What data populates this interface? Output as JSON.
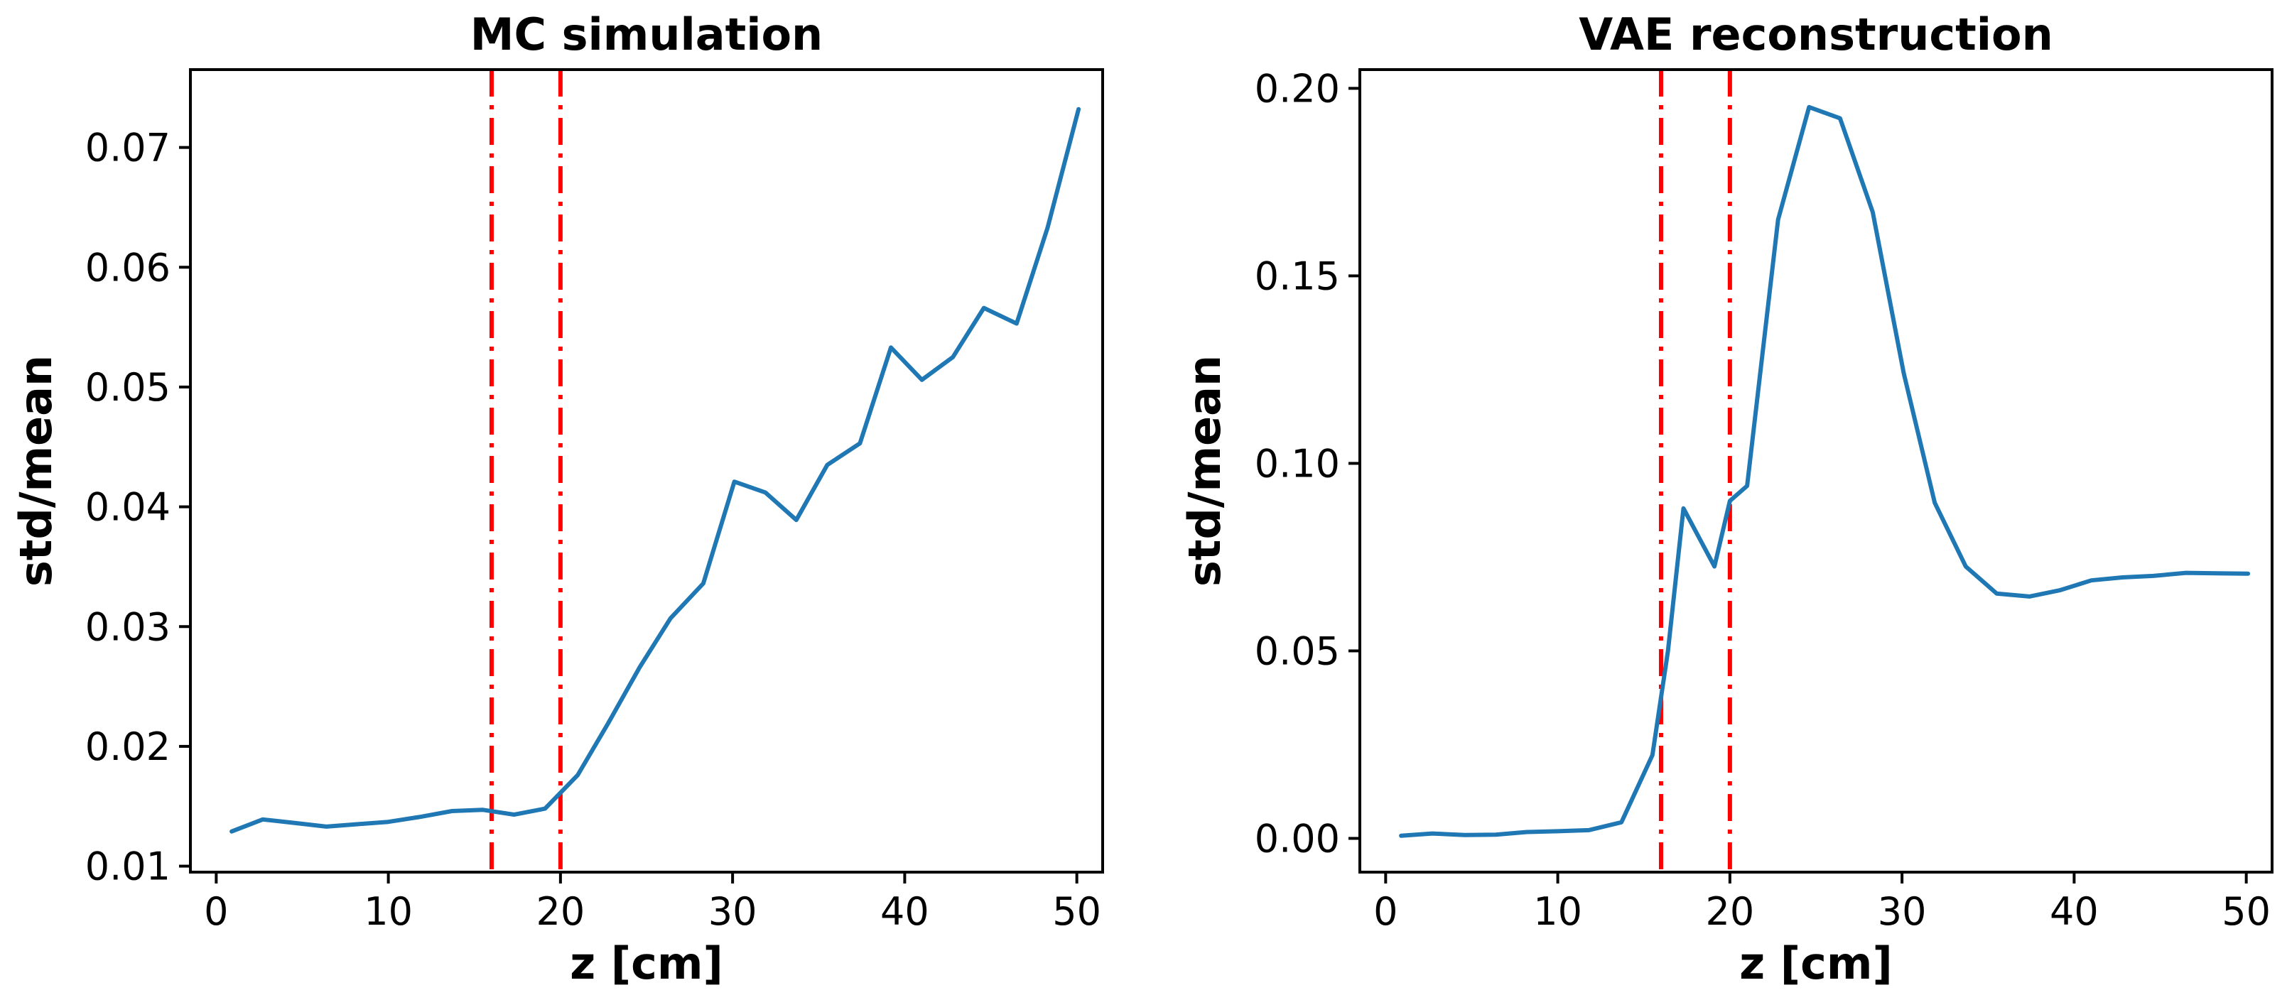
{
  "chart_data": [
    {
      "type": "line",
      "title": "MC simulation",
      "xlabel": "z [cm]",
      "ylabel": "std/mean",
      "xlim": [
        -1.5,
        51.5
      ],
      "ylim": [
        0.0095,
        0.0765
      ],
      "xticks": [
        0,
        10,
        20,
        30,
        40,
        50
      ],
      "xtick_labels": [
        "0",
        "10",
        "20",
        "30",
        "40",
        "50"
      ],
      "yticks": [
        0.01,
        0.02,
        0.03,
        0.04,
        0.05,
        0.06,
        0.07
      ],
      "ytick_labels": [
        "0.01",
        "0.02",
        "0.03",
        "0.04",
        "0.05",
        "0.06",
        "0.07"
      ],
      "grid": false,
      "series_color": "#1f77b4",
      "vlines": [
        16,
        20
      ],
      "vline_color": "#ff0000",
      "series": [
        {
          "x": [
            0.9,
            2.7,
            4.6,
            6.4,
            8.2,
            10.0,
            11.8,
            13.7,
            15.5,
            17.3,
            19.1,
            21.0,
            22.8,
            24.6,
            26.4,
            28.3,
            30.1,
            31.9,
            33.7,
            35.5,
            37.4,
            39.2,
            41.0,
            42.8,
            44.6,
            46.5,
            48.3,
            50.1
          ],
          "y": [
            0.0129,
            0.0139,
            0.0136,
            0.0133,
            0.0135,
            0.0137,
            0.0141,
            0.0146,
            0.0147,
            0.0143,
            0.0148,
            0.0176,
            0.022,
            0.0266,
            0.0307,
            0.0336,
            0.0421,
            0.0412,
            0.0389,
            0.0435,
            0.0453,
            0.0533,
            0.0506,
            0.0525,
            0.0566,
            0.0553,
            0.0633,
            0.0732
          ]
        }
      ]
    },
    {
      "type": "line",
      "title": "VAE reconstruction",
      "xlabel": "z [cm]",
      "ylabel": "std/mean",
      "xlim": [
        -1.5,
        51.5
      ],
      "ylim": [
        -0.009,
        0.205
      ],
      "xticks": [
        0,
        10,
        20,
        30,
        40,
        50
      ],
      "xtick_labels": [
        "0",
        "10",
        "20",
        "30",
        "40",
        "50"
      ],
      "yticks": [
        0.0,
        0.05,
        0.1,
        0.15,
        0.2
      ],
      "ytick_labels": [
        "0.00",
        "0.05",
        "0.10",
        "0.15",
        "0.20"
      ],
      "grid": false,
      "series_color": "#1f77b4",
      "vlines": [
        16,
        20
      ],
      "vline_color": "#ff0000",
      "series": [
        {
          "x": [
            0.9,
            2.7,
            4.6,
            6.4,
            8.2,
            10.0,
            11.8,
            13.7,
            15.5,
            16.4,
            17.3,
            19.1,
            20.0,
            21.0,
            22.8,
            24.6,
            26.4,
            28.3,
            30.1,
            31.9,
            33.7,
            35.5,
            37.4,
            39.2,
            41.0,
            42.8,
            44.6,
            46.5,
            48.3,
            50.1
          ],
          "y": [
            0.0007,
            0.0013,
            0.0009,
            0.001,
            0.0017,
            0.0019,
            0.0022,
            0.0043,
            0.0222,
            0.05,
            0.088,
            0.0725,
            0.09,
            0.094,
            0.165,
            0.195,
            0.192,
            0.167,
            0.124,
            0.0895,
            0.0725,
            0.0653,
            0.0645,
            0.0662,
            0.0688,
            0.0696,
            0.07,
            0.0708,
            0.0707,
            0.0706
          ]
        }
      ]
    }
  ]
}
